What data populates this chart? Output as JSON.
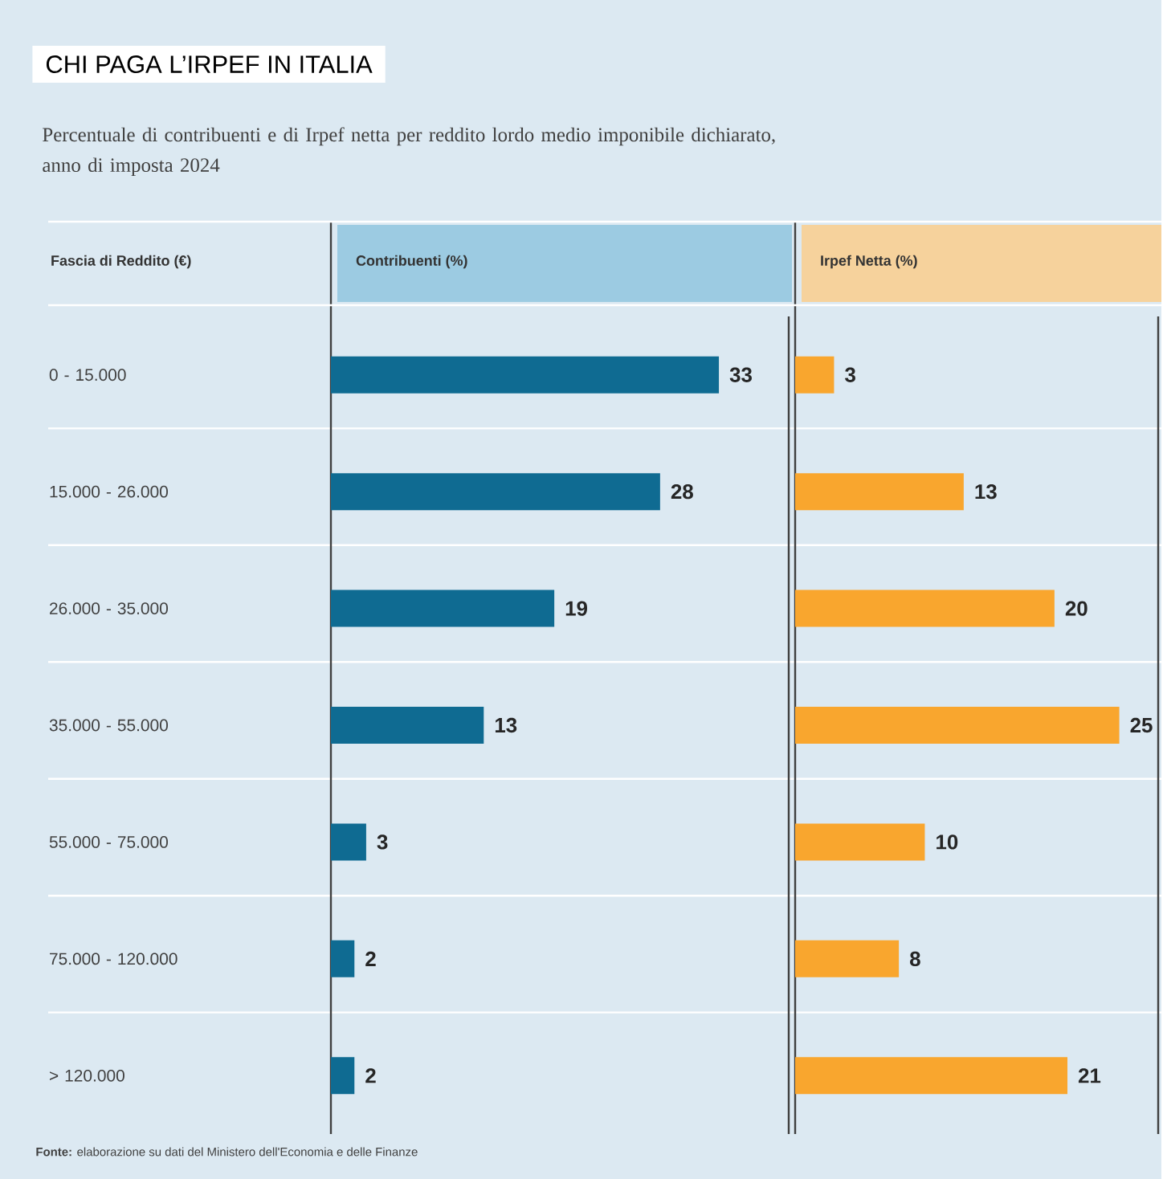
{
  "chart_data": [
    {
      "type": "bar",
      "orientation": "horizontal",
      "title": "CHI PAGA L’IRPEF IN ITALIA",
      "subtitle": "Percentuale di contribuenti e di Irpef netta per reddito lordo medio imponibile dichiarato, anno di imposta 2024",
      "ylabel": "Fascia di Reddito (€)",
      "xlabel": "Contribuenti (%)",
      "categories": [
        "0 - 15.000",
        "15.000 - 26.000",
        "26.000 - 35.000",
        "35.000 - 55.000",
        "55.000 - 75.000",
        "75.000 - 120.000",
        "> 120.000"
      ],
      "values": [
        33,
        28,
        19,
        13,
        3,
        2,
        2
      ],
      "color": "#0f6b92",
      "data_labels": true,
      "tick_labels": "y",
      "annotations": [
        "**Fonte:** elaborazione su dati del Ministero dell'Economia e delle Finanze"
      ]
    },
    {
      "type": "bar",
      "orientation": "horizontal",
      "xlabel": "Irpef Netta (%)",
      "values": [
        3,
        13,
        20,
        25,
        10,
        8,
        21
      ],
      "color": "#f9a62e",
      "data_labels": true,
      "tick_labels": false
    }
  ]
}
